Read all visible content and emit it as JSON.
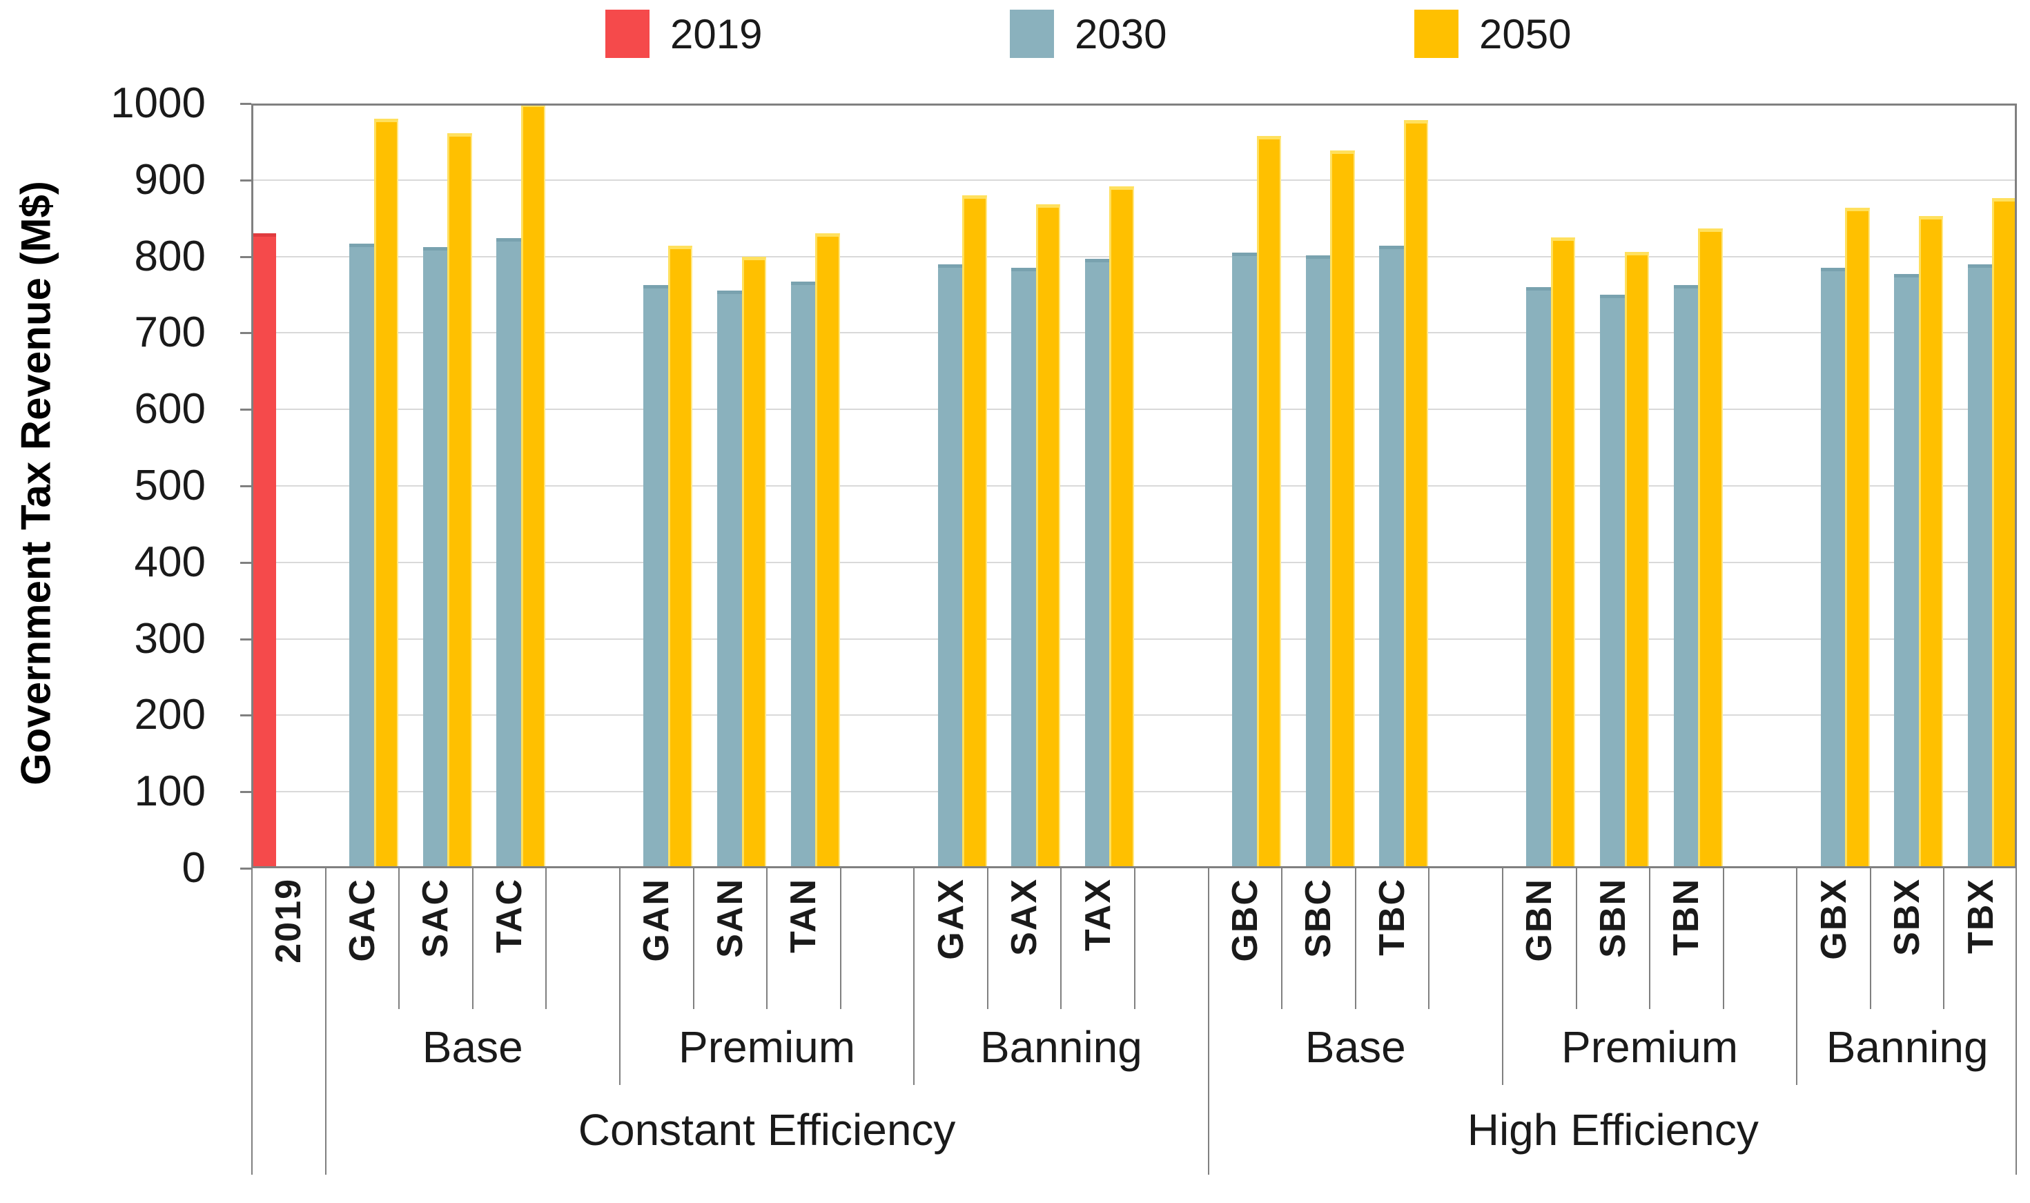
{
  "chart_data": {
    "type": "bar",
    "title": "",
    "ylabel": "Government Tax Revenue (M$)",
    "xlabel": "",
    "ylim": [
      0,
      1000
    ],
    "ytick_step": 100,
    "grid": true,
    "legend_position": "top",
    "colors": {
      "2019": "#F54A4B",
      "2030": "#8AB1BD",
      "2050": "#FFC000",
      "gridline": "#D9D9D9",
      "frame": "#808080"
    },
    "legend": [
      {
        "label": "2019",
        "color": "#F54A4B"
      },
      {
        "label": "2030",
        "color": "#8AB1BD"
      },
      {
        "label": "2050",
        "color": "#FFC000"
      }
    ],
    "first_category": {
      "label": "2019",
      "series": "2019",
      "value": 830
    },
    "sections": [
      {
        "label": "Constant Efficiency",
        "groups": [
          {
            "label": "Base",
            "bars": [
              {
                "label": "GAC",
                "2030": 817,
                "2050": 980
              },
              {
                "label": "SAC",
                "2030": 812,
                "2050": 961
              },
              {
                "label": "TAC",
                "2030": 824,
                "2050": 1000
              }
            ]
          },
          {
            "label": "Premium",
            "bars": [
              {
                "label": "GAN",
                "2030": 763,
                "2050": 814
              },
              {
                "label": "SAN",
                "2030": 755,
                "2050": 800
              },
              {
                "label": "TAN",
                "2030": 767,
                "2050": 830
              }
            ]
          },
          {
            "label": "Banning",
            "bars": [
              {
                "label": "GAX",
                "2030": 790,
                "2050": 880
              },
              {
                "label": "SAX",
                "2030": 785,
                "2050": 868
              },
              {
                "label": "TAX",
                "2030": 797,
                "2050": 892
              }
            ]
          }
        ]
      },
      {
        "label": "High Efficiency",
        "groups": [
          {
            "label": "Base",
            "bars": [
              {
                "label": "GBC",
                "2030": 805,
                "2050": 958
              },
              {
                "label": "SBC",
                "2030": 801,
                "2050": 939
              },
              {
                "label": "TBC",
                "2030": 814,
                "2050": 978
              }
            ]
          },
          {
            "label": "Premium",
            "bars": [
              {
                "label": "GBN",
                "2030": 760,
                "2050": 825
              },
              {
                "label": "SBN",
                "2030": 750,
                "2050": 806
              },
              {
                "label": "TBN",
                "2030": 763,
                "2050": 837
              }
            ]
          },
          {
            "label": "Banning",
            "bars": [
              {
                "label": "GBX",
                "2030": 785,
                "2050": 864
              },
              {
                "label": "SBX",
                "2030": 777,
                "2050": 853
              },
              {
                "label": "TBX",
                "2030": 790,
                "2050": 876
              }
            ]
          }
        ]
      }
    ]
  }
}
